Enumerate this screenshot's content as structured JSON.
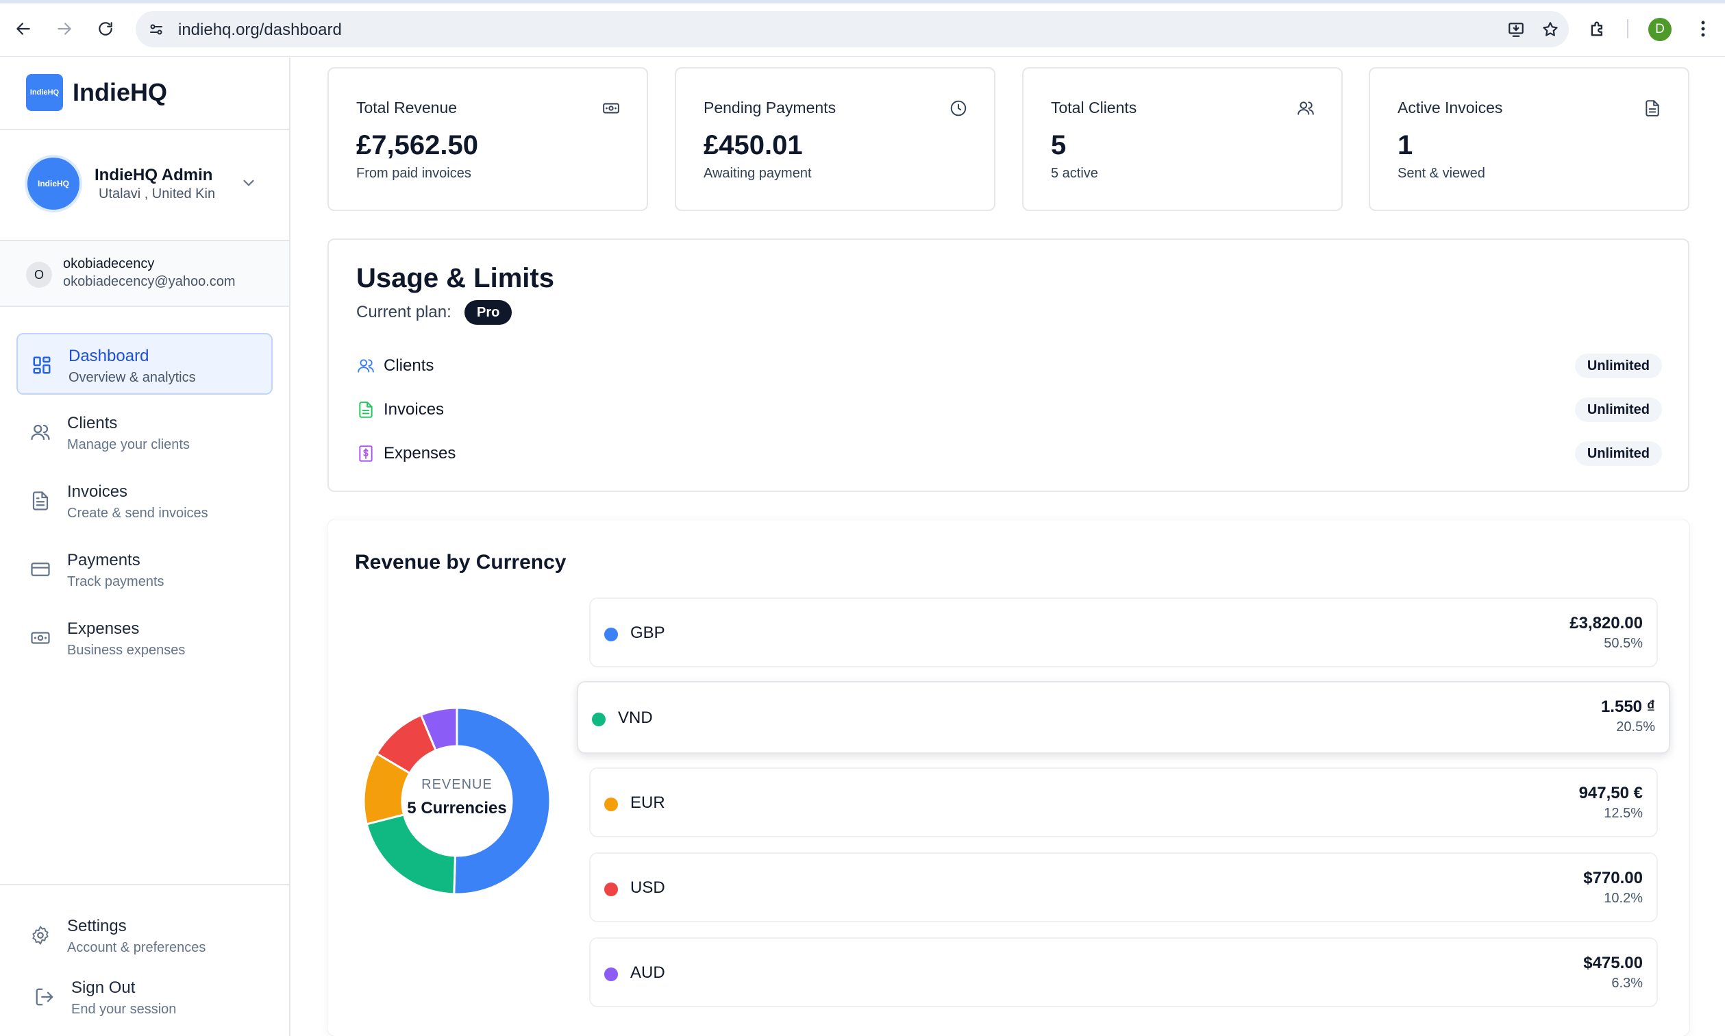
{
  "browser": {
    "url": "indiehq.org/dashboard",
    "profile_initial": "D"
  },
  "brand": {
    "logo_text": "IndieHQ",
    "name": "IndieHQ"
  },
  "admin": {
    "avatar_text": "IndieHQ",
    "name": "IndieHQ Admin",
    "location": "Utalavi , United Kin"
  },
  "account": {
    "initial": "O",
    "username": "okobiadecency",
    "email": "okobiadecency@yahoo.com"
  },
  "nav": [
    {
      "label": "Dashboard",
      "sub": "Overview & analytics",
      "icon": "dashboard-icon",
      "active": true
    },
    {
      "label": "Clients",
      "sub": "Manage your clients",
      "icon": "users-icon"
    },
    {
      "label": "Invoices",
      "sub": "Create & send invoices",
      "icon": "file-icon"
    },
    {
      "label": "Payments",
      "sub": "Track payments",
      "icon": "credit-card-icon"
    },
    {
      "label": "Expenses",
      "sub": "Business expenses",
      "icon": "banknote-icon"
    }
  ],
  "bottom_nav": [
    {
      "label": "Settings",
      "sub": "Account & preferences",
      "icon": "gear-icon"
    },
    {
      "label": "Sign Out",
      "sub": "End your session",
      "icon": "sign-out-icon"
    }
  ],
  "stats": [
    {
      "title": "Total Revenue",
      "value": "£7,562.50",
      "sub": "From paid invoices",
      "icon": "banknote-icon"
    },
    {
      "title": "Pending Payments",
      "value": "£450.01",
      "sub": "Awaiting payment",
      "icon": "clock-icon"
    },
    {
      "title": "Total Clients",
      "value": "5",
      "sub": "5 active",
      "icon": "users-icon"
    },
    {
      "title": "Active Invoices",
      "value": "1",
      "sub": "Sent & viewed",
      "icon": "file-icon"
    }
  ],
  "usage": {
    "title": "Usage & Limits",
    "plan_label": "Current plan:",
    "plan": "Pro",
    "rows": [
      {
        "label": "Clients",
        "limit": "Unlimited",
        "icon": "users-icon",
        "color": "#3b82f6"
      },
      {
        "label": "Invoices",
        "limit": "Unlimited",
        "icon": "file-icon",
        "color": "#22c55e"
      },
      {
        "label": "Expenses",
        "limit": "Unlimited",
        "icon": "receipt-icon",
        "color": "#a855f7"
      }
    ]
  },
  "revenue": {
    "title": "Revenue by Currency",
    "center_label": "REVENUE",
    "center_value": "5 Currencies",
    "currencies": [
      {
        "code": "GBP",
        "amount": "£3,820.00",
        "pct": "50.5%",
        "share": 50.5,
        "color": "#3b82f6"
      },
      {
        "code": "VND",
        "amount": "1.550 ₫",
        "pct": "20.5%",
        "share": 20.5,
        "color": "#10b981"
      },
      {
        "code": "EUR",
        "amount": "947,50 €",
        "pct": "12.5%",
        "share": 12.5,
        "color": "#f59e0b"
      },
      {
        "code": "USD",
        "amount": "$770.00",
        "pct": "10.2%",
        "share": 10.2,
        "color": "#ef4444"
      },
      {
        "code": "AUD",
        "amount": "$475.00",
        "pct": "6.3%",
        "share": 6.3,
        "color": "#8b5cf6"
      }
    ]
  },
  "chart_data": {
    "type": "pie",
    "categories": [
      "GBP",
      "VND",
      "EUR",
      "USD",
      "AUD"
    ],
    "values": [
      50.5,
      20.5,
      12.5,
      10.2,
      6.3
    ],
    "title": "Revenue by Currency"
  }
}
